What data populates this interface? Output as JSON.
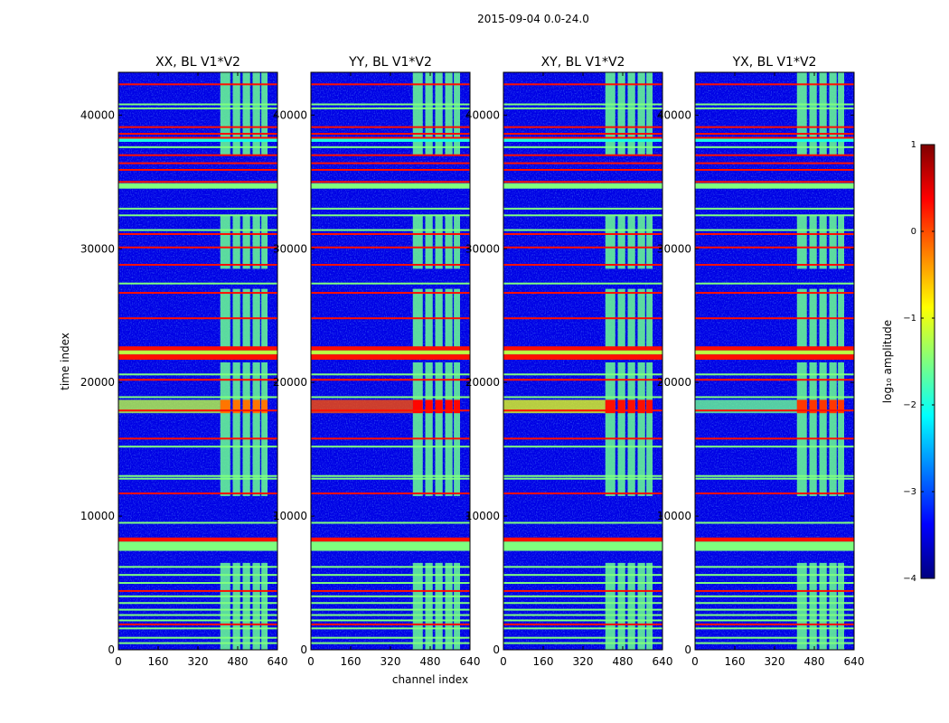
{
  "chart_data": {
    "type": "heatmap",
    "suptitle": "2015-09-04 0.0-24.0",
    "xlabel": "channel index",
    "ylabel": "time index",
    "xlim": [
      0,
      640
    ],
    "ylim": [
      0,
      43200
    ],
    "x_ticks": [
      "0",
      "160",
      "320",
      "480",
      "640"
    ],
    "y_ticks": [
      "0",
      "10000",
      "20000",
      "30000",
      "40000"
    ],
    "x_tick_values": [
      0,
      160,
      320,
      480,
      640
    ],
    "y_tick_values": [
      0,
      10000,
      20000,
      30000,
      40000
    ],
    "panels": [
      {
        "title": "XX, BL V1*V2",
        "polarization": "XX",
        "band_value": -0.2,
        "band_edge_value": -1.2
      },
      {
        "title": "YY, BL V1*V2",
        "polarization": "YY",
        "band_value": 0.35,
        "band_edge_value": 0.0
      },
      {
        "title": "XY, BL V1*V2",
        "polarization": "XY",
        "band_value": 0.3,
        "band_edge_value": -1.0
      },
      {
        "title": "YX, BL V1*V2",
        "polarization": "YX",
        "band_value": 0.1,
        "band_edge_value": -1.6
      }
    ],
    "background_value": -3.5,
    "rfi_channel_range": [
      410,
      600
    ],
    "rfi_channel_blocks": [
      [
        410,
        450
      ],
      [
        460,
        490
      ],
      [
        500,
        530
      ],
      [
        540,
        570
      ],
      [
        575,
        600
      ]
    ],
    "rfi_channel_value": -1.6,
    "rfi_time_ranges": [
      [
        0,
        6500
      ],
      [
        11500,
        21500
      ],
      [
        22500,
        27000
      ],
      [
        28500,
        32500
      ],
      [
        37000,
        43200
      ]
    ],
    "strong_band_time": [
      17700,
      18700
    ],
    "flagged_rows": [
      {
        "t": 500,
        "v": -1.5
      },
      {
        "t": 900,
        "v": -1.5
      },
      {
        "t": 1600,
        "v": -1.5
      },
      {
        "t": 1900,
        "v": 0.3
      },
      {
        "t": 2200,
        "v": -1.5
      },
      {
        "t": 2600,
        "v": -1.5
      },
      {
        "t": 3000,
        "v": -1.5
      },
      {
        "t": 3500,
        "v": -1.5
      },
      {
        "t": 4000,
        "v": -1.5
      },
      {
        "t": 4400,
        "v": 0.3
      },
      {
        "t": 5000,
        "v": -1.5
      },
      {
        "t": 5600,
        "v": -1.5
      },
      {
        "t": 6200,
        "v": -1.5
      },
      {
        "t": 9500,
        "v": -1.5
      },
      {
        "t": 11700,
        "v": 0.3
      },
      {
        "t": 12800,
        "v": -1.5
      },
      {
        "t": 13000,
        "v": -1.5
      },
      {
        "t": 15200,
        "v": -1.5
      },
      {
        "t": 15800,
        "v": 0.3
      },
      {
        "t": 17900,
        "v": 0.3
      },
      {
        "t": 18900,
        "v": -1.5
      },
      {
        "t": 20200,
        "v": 0.3
      },
      {
        "t": 20600,
        "v": -1.5
      },
      {
        "t": 24800,
        "v": 0.3
      },
      {
        "t": 26700,
        "v": 0.3
      },
      {
        "t": 27400,
        "v": -1.5
      },
      {
        "t": 28800,
        "v": 0.3
      },
      {
        "t": 30100,
        "v": 0.3
      },
      {
        "t": 31100,
        "v": 0.3
      },
      {
        "t": 31400,
        "v": -1.5
      },
      {
        "t": 32500,
        "v": -1.5
      },
      {
        "t": 33000,
        "v": -1.5
      },
      {
        "t": 35000,
        "v": 0.3
      },
      {
        "t": 35900,
        "v": 0.3
      },
      {
        "t": 36400,
        "v": 0.3
      },
      {
        "t": 37000,
        "v": 0.3
      },
      {
        "t": 37600,
        "v": -1.5
      },
      {
        "t": 38300,
        "v": 0.3
      },
      {
        "t": 38600,
        "v": 0.3
      },
      {
        "t": 39100,
        "v": 0.3
      },
      {
        "t": 40500,
        "v": -1.5
      },
      {
        "t": 40800,
        "v": -1.5
      },
      {
        "t": 42300,
        "v": 0.3
      }
    ],
    "flagged_bands": [
      {
        "t0": 7400,
        "t1": 8100,
        "v": -1.5
      },
      {
        "t0": 8100,
        "t1": 8400,
        "v": 0.3
      },
      {
        "t0": 21700,
        "t1": 22100,
        "v": 0.3
      },
      {
        "t0": 22100,
        "t1": 22400,
        "v": -1.2
      },
      {
        "t0": 22400,
        "t1": 22700,
        "v": 0.3
      },
      {
        "t0": 34500,
        "t1": 34900,
        "v": -1.5
      },
      {
        "t0": 38000,
        "t1": 38300,
        "v": -2.0
      }
    ],
    "colorbar": {
      "label": "log₁₀ amplitude",
      "min": -4,
      "max": 1,
      "ticks": [
        "1",
        "0",
        "−1",
        "−2",
        "−3",
        "−4"
      ],
      "tick_values": [
        1,
        0,
        -1,
        -2,
        -3,
        -4
      ],
      "colormap": "jet",
      "colors": [
        "#00007f",
        "#0000ff",
        "#007fff",
        "#00ffff",
        "#7fff7f",
        "#ffff00",
        "#ff7f00",
        "#ff0000",
        "#7f0000"
      ]
    }
  }
}
